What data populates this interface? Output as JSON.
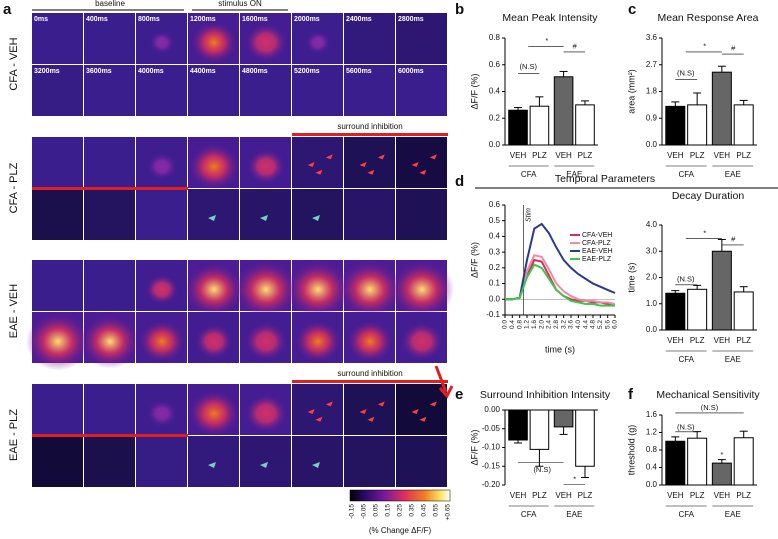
{
  "panel_a": {
    "letter": "a",
    "baseline": "baseline",
    "stimulus": "stimulus ON",
    "surround": "surround inhibition",
    "times": [
      [
        "0ms",
        "400ms",
        "800ms",
        "1200ms",
        "1600ms",
        "2000ms",
        "2400ms",
        "2800ms"
      ],
      [
        "3200ms",
        "3600ms",
        "4000ms",
        "4400ms",
        "4800ms",
        "5200ms",
        "5600ms",
        "6000ms"
      ]
    ],
    "rows": [
      "CFA - VEH",
      "CFA - PLZ",
      "EAE - VEH",
      "EAE - PLZ"
    ],
    "colorbar": {
      "ticks": [
        "-0.15",
        "-0.05",
        "0.05",
        "0.15",
        "0.25",
        "0.35",
        "0.45",
        "0.55",
        "+0.65"
      ],
      "label": "(% Change ΔF/F)"
    }
  },
  "chart_data": [
    {
      "type": "bar",
      "letter": "b",
      "title": "Mean Peak Intensity",
      "ylabel": "ΔF/F (%)",
      "categories": [
        "VEH",
        "PLZ",
        "VEH",
        "PLZ"
      ],
      "groups": [
        "CFA",
        "EAE"
      ],
      "values": [
        0.26,
        0.29,
        0.51,
        0.3
      ],
      "errors": [
        0.02,
        0.07,
        0.04,
        0.03
      ],
      "colors": [
        "#000000",
        "#ffffff",
        "#666666",
        "#ffffff"
      ],
      "ylim": [
        0,
        0.8
      ],
      "yticks": [
        {
          "value": 0,
          "label": "0.0"
        },
        0.2,
        0.4,
        0.6,
        0.8
      ],
      "annotations": [
        "(N.S)",
        "*",
        "#"
      ]
    },
    {
      "type": "bar",
      "letter": "c",
      "title": "Mean Response Area",
      "ylabel": "area (mm²)",
      "categories": [
        "VEH",
        "PLZ",
        "VEH",
        "PLZ"
      ],
      "groups": [
        "CFA",
        "EAE"
      ],
      "values": [
        1.3,
        1.35,
        2.45,
        1.35
      ],
      "errors": [
        0.15,
        0.4,
        0.2,
        0.15
      ],
      "colors": [
        "#000000",
        "#ffffff",
        "#666666",
        "#ffffff"
      ],
      "ylim": [
        0,
        3.6
      ],
      "yticks": [
        {
          "value": 0,
          "label": "0.0"
        },
        0.9,
        1.8,
        2.7,
        3.6
      ],
      "annotations": [
        "(N.S)",
        "*",
        "#"
      ]
    },
    {
      "type": "line",
      "letter": "d",
      "header": "Temporal Parameters",
      "ylabel": "ΔF/F (%)",
      "xlabel": "time (s)",
      "annotation": "Stim",
      "x": [
        0,
        0.4,
        0.8,
        1.2,
        1.6,
        2.0,
        2.4,
        2.8,
        3.2,
        3.6,
        4.0,
        4.4,
        4.8,
        5.2,
        5.6,
        6.0
      ],
      "series": [
        {
          "name": "CFA-VEH",
          "color": "#d62d5a",
          "values": [
            0,
            0,
            0.01,
            0.15,
            0.25,
            0.24,
            0.15,
            0.06,
            0.02,
            0,
            -0.01,
            -0.01,
            -0.02,
            -0.02,
            -0.03,
            -0.03
          ]
        },
        {
          "name": "CFA-PLZ",
          "color": "#f08aa8",
          "values": [
            0,
            0,
            0.01,
            0.18,
            0.28,
            0.27,
            0.19,
            0.1,
            0.05,
            0.02,
            0,
            -0.01,
            -0.01,
            -0.02,
            -0.02,
            -0.03
          ]
        },
        {
          "name": "EAE-VEH",
          "color": "#2b3990",
          "values": [
            0,
            0,
            0.01,
            0.25,
            0.45,
            0.48,
            0.42,
            0.33,
            0.25,
            0.2,
            0.16,
            0.13,
            0.1,
            0.08,
            0.06,
            0.04
          ]
        },
        {
          "name": "EAE-PLZ",
          "color": "#3cc84a",
          "values": [
            0,
            0,
            0.01,
            0.14,
            0.22,
            0.2,
            0.13,
            0.06,
            0.02,
            -0.01,
            -0.02,
            -0.03,
            -0.03,
            -0.04,
            -0.04,
            -0.04
          ]
        }
      ],
      "xlim": [
        0,
        6
      ],
      "xticks": [
        {
          "value": 0,
          "label": "0.0"
        },
        0.4,
        0.8,
        1.2,
        1.6,
        {
          "value": 2,
          "label": "2.0"
        },
        2.4,
        2.8,
        3.2,
        3.6,
        {
          "value": 4,
          "label": "4.0"
        },
        4.4,
        4.8,
        5.2,
        5.6,
        {
          "value": 6,
          "label": "6.0"
        }
      ],
      "ylim": [
        -0.1,
        0.6
      ],
      "yticks": [
        -0.1,
        {
          "value": 0,
          "label": "0.0"
        },
        0.1,
        0.2,
        0.3,
        0.4,
        0.5,
        0.6
      ]
    },
    {
      "type": "bar",
      "title": "Decay Duration",
      "ylabel": "time (s)",
      "categories": [
        "VEH",
        "PLZ",
        "VEH",
        "PLZ"
      ],
      "groups": [
        "CFA",
        "EAE"
      ],
      "values": [
        1.4,
        1.55,
        3.0,
        1.45
      ],
      "errors": [
        0.1,
        0.15,
        0.45,
        0.2
      ],
      "colors": [
        "#000000",
        "#ffffff",
        "#666666",
        "#ffffff"
      ],
      "ylim": [
        0,
        4
      ],
      "yticks": [
        {
          "value": 0,
          "label": "0.0"
        },
        {
          "value": 1,
          "label": "1.0"
        },
        {
          "value": 2,
          "label": "2.0"
        },
        {
          "value": 3,
          "label": "3.0"
        },
        {
          "value": 4,
          "label": "4.0"
        }
      ],
      "annotations": [
        "(N.S)",
        "*",
        "#"
      ]
    },
    {
      "type": "bar",
      "letter": "e",
      "title": "Surround Inhibition Intensity",
      "ylabel": "ΔF/F (%)",
      "categories": [
        "VEH",
        "PLZ",
        "VEH",
        "PLZ"
      ],
      "groups": [
        "CFA",
        "EAE"
      ],
      "values": [
        -0.08,
        -0.105,
        -0.045,
        -0.15
      ],
      "errors": [
        0.008,
        0.045,
        0.02,
        0.03
      ],
      "colors": [
        "#000000",
        "#ffffff",
        "#666666",
        "#ffffff"
      ],
      "ylim": [
        -0.2,
        0
      ],
      "yticks": [
        {
          "value": 0,
          "label": "0.00"
        },
        -0.05,
        {
          "value": -0.1,
          "label": "-0.10"
        },
        -0.15,
        {
          "value": -0.2,
          "label": "-0.20"
        }
      ],
      "annotations": [
        "(N.S)",
        "*"
      ]
    },
    {
      "type": "bar",
      "letter": "f",
      "title": "Mechanical Sensitivity",
      "ylabel": "threshold (g)",
      "categories": [
        "VEH",
        "PLZ",
        "VEH",
        "PLZ"
      ],
      "groups": [
        "CFA",
        "EAE"
      ],
      "values": [
        1.0,
        1.07,
        0.5,
        1.08
      ],
      "errors": [
        0.1,
        0.15,
        0.08,
        0.15
      ],
      "colors": [
        "#000000",
        "#ffffff",
        "#666666",
        "#ffffff"
      ],
      "ylim": [
        0,
        1.6
      ],
      "yticks": [
        {
          "value": 0,
          "label": "0.0"
        },
        0.4,
        0.8,
        1.2,
        1.6
      ],
      "annotations": [
        "(N.S)",
        "(N.S)",
        "*"
      ]
    }
  ]
}
